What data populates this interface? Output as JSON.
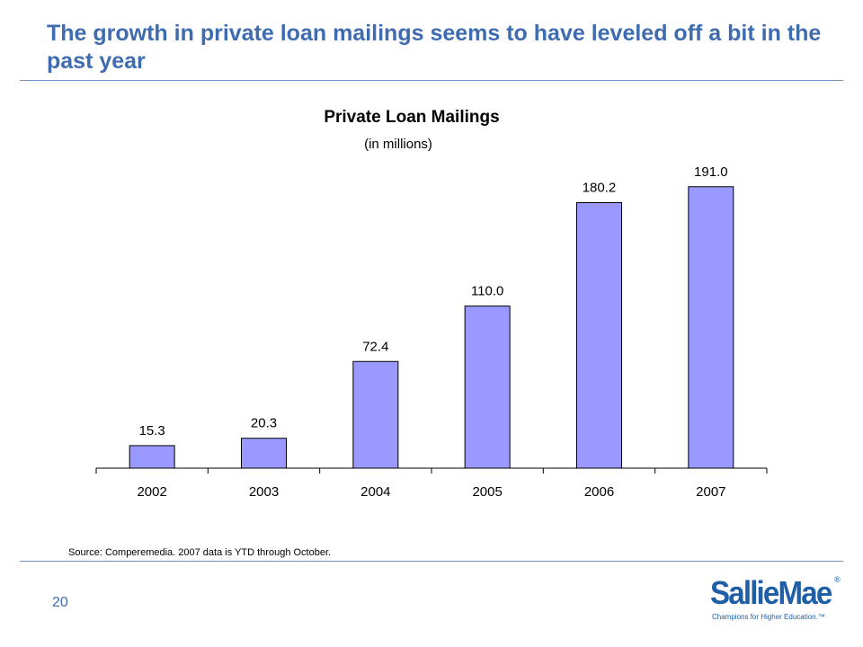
{
  "slide": {
    "title": "The growth in private loan mailings seems to have leveled off a bit in the past year",
    "source_note": "Source: Comperemedia. 2007 data is YTD through October.",
    "page_number": "20"
  },
  "logo": {
    "name": "SallieMae",
    "registered_mark": "®",
    "tagline": "Champions for Higher Education.™"
  },
  "colors": {
    "title": "#3f6cb0",
    "bar_fill": "#9999ff",
    "bar_stroke": "#000000",
    "rule": "#6f8fbf"
  },
  "chart_data": {
    "type": "bar",
    "title": "Private Loan Mailings",
    "subtitle": "(in millions)",
    "categories": [
      "2002",
      "2003",
      "2004",
      "2005",
      "2006",
      "2007"
    ],
    "values": [
      15.3,
      20.3,
      72.4,
      110.0,
      180.2,
      191.0
    ],
    "data_labels": [
      "15.3",
      "20.3",
      "72.4",
      "110.0",
      "180.2",
      "191.0"
    ],
    "xlabel": "",
    "ylabel": "",
    "ylim": [
      0,
      200
    ],
    "grid": false,
    "legend": "none"
  }
}
